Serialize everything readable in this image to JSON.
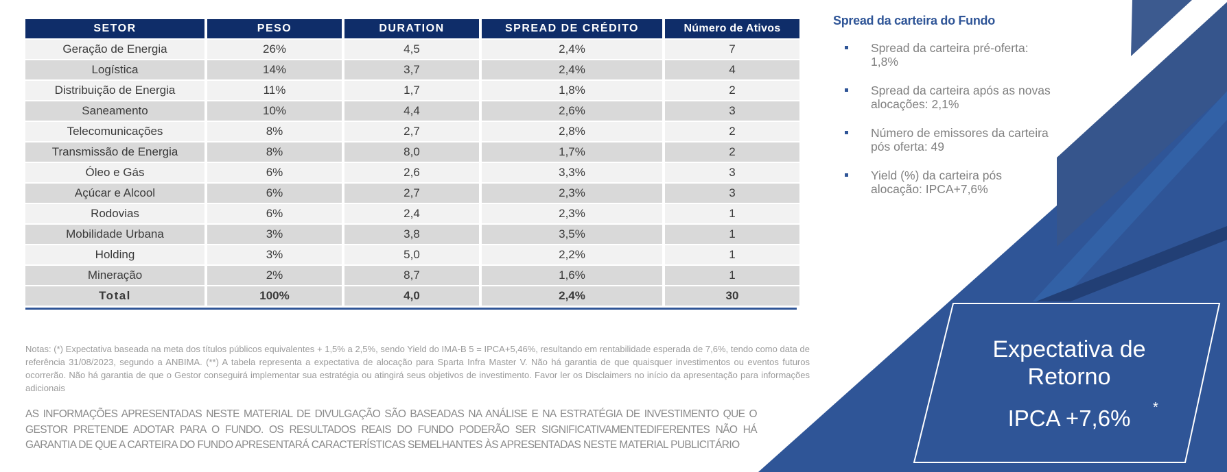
{
  "table": {
    "headers": [
      "SETOR",
      "PESO",
      "DURATION",
      "SPREAD DE CRÉDITO",
      "Número de Ativos"
    ],
    "rows": [
      [
        "Geração de Energia",
        "26%",
        "4,5",
        "2,4%",
        "7"
      ],
      [
        "Logística",
        "14%",
        "3,7",
        "2,4%",
        "4"
      ],
      [
        "Distribuição de Energia",
        "11%",
        "1,7",
        "1,8%",
        "2"
      ],
      [
        "Saneamento",
        "10%",
        "4,4",
        "2,6%",
        "3"
      ],
      [
        "Telecomunicações",
        "8%",
        "2,7",
        "2,8%",
        "2"
      ],
      [
        "Transmissão de Energia",
        "8%",
        "8,0",
        "1,7%",
        "2"
      ],
      [
        "Óleo e Gás",
        "6%",
        "2,6",
        "3,3%",
        "3"
      ],
      [
        "Açúcar e Alcool",
        "6%",
        "2,7",
        "2,3%",
        "3"
      ],
      [
        "Rodovias",
        "6%",
        "2,4",
        "2,3%",
        "1"
      ],
      [
        "Mobilidade Urbana",
        "3%",
        "3,8",
        "3,5%",
        "1"
      ],
      [
        "Holding",
        "3%",
        "5,0",
        "2,2%",
        "1"
      ],
      [
        "Mineração",
        "2%",
        "8,7",
        "1,6%",
        "1"
      ]
    ],
    "total": [
      "Total",
      "100%",
      "4,0",
      "2,4%",
      "30"
    ]
  },
  "notes": "Notas: (*) Expectativa baseada na meta dos títulos públicos equivalentes + 1,5% a 2,5%, sendo Yield do IMA-B 5 = IPCA+5,46%, resultando em rentabilidade esperada de 7,6%, tendo como data de referência 31/08/2023, segundo a ANBIMA. (**) A tabela representa a expectativa de alocação para Sparta Infra Master V. Não há garantia de que quaisquer investimentos ou eventos futuros ocorrerão. Não há garantia de que o Gestor conseguirá implementar sua estratégia ou atingirá seus objetivos de investimento. Favor ler os Disclaimers no início da apresentação para informações adicionais",
  "disclaimer": "AS INFORMAÇÕES APRESENTADAS NESTE MATERIAL DE DIVULGAÇÃO SÃO BASEADAS NA ANÁLISE E NA ESTRATÉGIA DE INVESTIMENTO QUE O GESTOR PRETENDE ADOTAR PARA O FUNDO. OS RESULTADOS REAIS DO FUNDO PODERÃO SER SIGNIFICATIVAMENTEDIFERENTES NÃO HÁ GARANTIA DE QUE A CARTEIRA DO FUNDO APRESENTARÁ CARACTERÍSTICAS SEMELHANTES ÀS APRESENTADAS NESTE MATERIAL PUBLICITÁRIO",
  "side": {
    "title": "Spread da carteira do Fundo",
    "bullets": [
      "Spread da carteira pré-oferta: 1,8%",
      "Spread da carteira após as novas alocações: 2,1%",
      "Número de emissores da carteira pós oferta: 49",
      "Yield (%) da carteira pós alocação: IPCA+7,6%"
    ]
  },
  "box": {
    "line1": "Expectativa de",
    "line2": "Retorno",
    "value": "IPCA +7,6%",
    "asterisk": "*"
  },
  "colors": {
    "navy": "#0f2d69",
    "blue": "#2f5597"
  }
}
